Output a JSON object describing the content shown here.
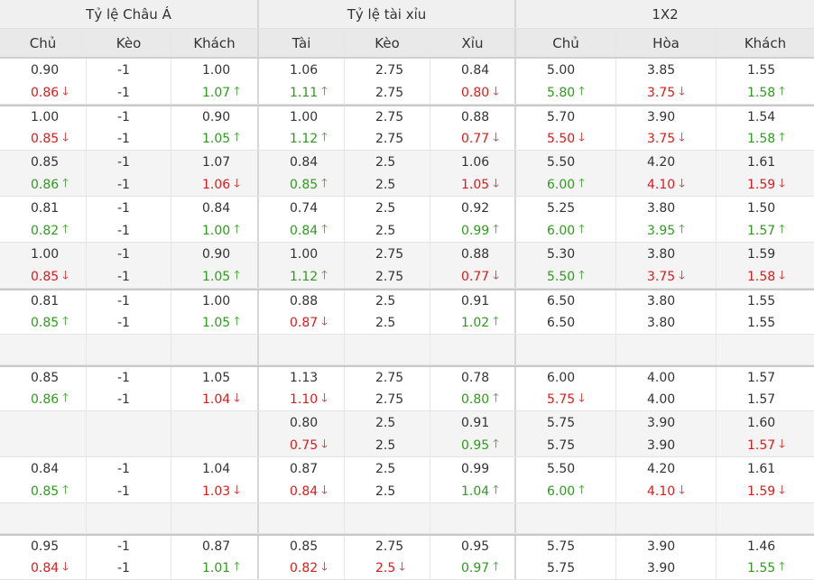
{
  "colors": {
    "up": "#2e9b1e",
    "down": "#dd1a1a",
    "neutral": "#333333"
  },
  "icons": {
    "up": "arrow-up-icon",
    "down": "arrow-down-icon"
  },
  "arrow_glyphs": {
    "up": "🡑",
    "down": "🡓"
  },
  "groups": [
    "Tỷ lệ Châu Á",
    "Tỷ lệ tài xỉu",
    "1X2"
  ],
  "columns": [
    "Chủ",
    "Kèo",
    "Khách",
    "Tài",
    "Kèo",
    "Xỉu",
    "Chủ",
    "Hòa",
    "Khách"
  ],
  "rows": [
    {
      "sep": false,
      "alt": false,
      "cells": [
        [
          {
            "v": "0.90"
          },
          {
            "v": "0.86",
            "d": "down"
          }
        ],
        [
          {
            "v": "-1"
          },
          {
            "v": "-1"
          }
        ],
        [
          {
            "v": "1.00"
          },
          {
            "v": "1.07",
            "d": "up"
          }
        ],
        [
          {
            "v": "1.06"
          },
          {
            "v": "1.11",
            "d": "up"
          }
        ],
        [
          {
            "v": "2.75"
          },
          {
            "v": "2.75"
          }
        ],
        [
          {
            "v": "0.84"
          },
          {
            "v": "0.80",
            "d": "down"
          }
        ],
        [
          {
            "v": "5.00"
          },
          {
            "v": "5.80",
            "d": "up"
          }
        ],
        [
          {
            "v": "3.85"
          },
          {
            "v": "3.75",
            "d": "down"
          }
        ],
        [
          {
            "v": "1.55"
          },
          {
            "v": "1.58",
            "d": "up"
          }
        ]
      ]
    },
    {
      "sep": true,
      "alt": false,
      "cells": [
        [
          {
            "v": "1.00"
          },
          {
            "v": "0.85",
            "d": "down"
          }
        ],
        [
          {
            "v": "-1"
          },
          {
            "v": "-1"
          }
        ],
        [
          {
            "v": "0.90"
          },
          {
            "v": "1.05",
            "d": "up"
          }
        ],
        [
          {
            "v": "1.00"
          },
          {
            "v": "1.12",
            "d": "up"
          }
        ],
        [
          {
            "v": "2.75"
          },
          {
            "v": "2.75"
          }
        ],
        [
          {
            "v": "0.88"
          },
          {
            "v": "0.77",
            "d": "down"
          }
        ],
        [
          {
            "v": "5.70"
          },
          {
            "v": "5.50",
            "d": "down"
          }
        ],
        [
          {
            "v": "3.90"
          },
          {
            "v": "3.75",
            "d": "down"
          }
        ],
        [
          {
            "v": "1.54"
          },
          {
            "v": "1.58",
            "d": "up"
          }
        ]
      ]
    },
    {
      "sep": false,
      "alt": true,
      "cells": [
        [
          {
            "v": "0.85"
          },
          {
            "v": "0.86",
            "d": "up"
          }
        ],
        [
          {
            "v": "-1"
          },
          {
            "v": "-1"
          }
        ],
        [
          {
            "v": "1.07"
          },
          {
            "v": "1.06",
            "d": "down"
          }
        ],
        [
          {
            "v": "0.84"
          },
          {
            "v": "0.85",
            "d": "up"
          }
        ],
        [
          {
            "v": "2.5"
          },
          {
            "v": "2.5"
          }
        ],
        [
          {
            "v": "1.06"
          },
          {
            "v": "1.05",
            "d": "down"
          }
        ],
        [
          {
            "v": "5.50"
          },
          {
            "v": "6.00",
            "d": "up"
          }
        ],
        [
          {
            "v": "4.20"
          },
          {
            "v": "4.10",
            "d": "down"
          }
        ],
        [
          {
            "v": "1.61"
          },
          {
            "v": "1.59",
            "d": "down"
          }
        ]
      ]
    },
    {
      "sep": false,
      "alt": false,
      "cells": [
        [
          {
            "v": "0.81"
          },
          {
            "v": "0.82",
            "d": "up"
          }
        ],
        [
          {
            "v": "-1"
          },
          {
            "v": "-1"
          }
        ],
        [
          {
            "v": "0.84"
          },
          {
            "v": "1.00",
            "d": "up"
          }
        ],
        [
          {
            "v": "0.74"
          },
          {
            "v": "0.84",
            "d": "up"
          }
        ],
        [
          {
            "v": "2.5"
          },
          {
            "v": "2.5"
          }
        ],
        [
          {
            "v": "0.92"
          },
          {
            "v": "0.99",
            "d": "up"
          }
        ],
        [
          {
            "v": "5.25"
          },
          {
            "v": "6.00",
            "d": "up"
          }
        ],
        [
          {
            "v": "3.80"
          },
          {
            "v": "3.95",
            "d": "up"
          }
        ],
        [
          {
            "v": "1.50"
          },
          {
            "v": "1.57",
            "d": "up"
          }
        ]
      ]
    },
    {
      "sep": false,
      "alt": true,
      "cells": [
        [
          {
            "v": "1.00"
          },
          {
            "v": "0.85",
            "d": "down"
          }
        ],
        [
          {
            "v": "-1"
          },
          {
            "v": "-1"
          }
        ],
        [
          {
            "v": "0.90"
          },
          {
            "v": "1.05",
            "d": "up"
          }
        ],
        [
          {
            "v": "1.00"
          },
          {
            "v": "1.12",
            "d": "up"
          }
        ],
        [
          {
            "v": "2.75"
          },
          {
            "v": "2.75"
          }
        ],
        [
          {
            "v": "0.88"
          },
          {
            "v": "0.77",
            "d": "down"
          }
        ],
        [
          {
            "v": "5.30"
          },
          {
            "v": "5.50",
            "d": "up"
          }
        ],
        [
          {
            "v": "3.80"
          },
          {
            "v": "3.75",
            "d": "down"
          }
        ],
        [
          {
            "v": "1.59"
          },
          {
            "v": "1.58",
            "d": "down"
          }
        ]
      ]
    },
    {
      "sep": true,
      "alt": false,
      "cells": [
        [
          {
            "v": "0.81"
          },
          {
            "v": "0.85",
            "d": "up"
          }
        ],
        [
          {
            "v": "-1"
          },
          {
            "v": "-1"
          }
        ],
        [
          {
            "v": "1.00"
          },
          {
            "v": "1.05",
            "d": "up"
          }
        ],
        [
          {
            "v": "0.88"
          },
          {
            "v": "0.87",
            "d": "down"
          }
        ],
        [
          {
            "v": "2.5"
          },
          {
            "v": "2.5"
          }
        ],
        [
          {
            "v": "0.91"
          },
          {
            "v": "1.02",
            "d": "up"
          }
        ],
        [
          {
            "v": "6.50"
          },
          {
            "v": "6.50"
          }
        ],
        [
          {
            "v": "3.80"
          },
          {
            "v": "3.80"
          }
        ],
        [
          {
            "v": "1.55"
          },
          {
            "v": "1.55"
          }
        ]
      ]
    },
    {
      "empty": true
    },
    {
      "sep": true,
      "alt": false,
      "cells": [
        [
          {
            "v": "0.85"
          },
          {
            "v": "0.86",
            "d": "up"
          }
        ],
        [
          {
            "v": "-1"
          },
          {
            "v": "-1"
          }
        ],
        [
          {
            "v": "1.05"
          },
          {
            "v": "1.04",
            "d": "down"
          }
        ],
        [
          {
            "v": "1.13"
          },
          {
            "v": "1.10",
            "d": "down"
          }
        ],
        [
          {
            "v": "2.75"
          },
          {
            "v": "2.75"
          }
        ],
        [
          {
            "v": "0.78"
          },
          {
            "v": "0.80",
            "d": "up"
          }
        ],
        [
          {
            "v": "6.00"
          },
          {
            "v": "5.75",
            "d": "down"
          }
        ],
        [
          {
            "v": "4.00"
          },
          {
            "v": "4.00"
          }
        ],
        [
          {
            "v": "1.57"
          },
          {
            "v": "1.57"
          }
        ]
      ]
    },
    {
      "sep": false,
      "alt": true,
      "cells": [
        [],
        [],
        [],
        [
          {
            "v": "0.80"
          },
          {
            "v": "0.75",
            "d": "down"
          }
        ],
        [
          {
            "v": "2.5"
          },
          {
            "v": "2.5"
          }
        ],
        [
          {
            "v": "0.91"
          },
          {
            "v": "0.95",
            "d": "up"
          }
        ],
        [
          {
            "v": "5.75"
          },
          {
            "v": "5.75"
          }
        ],
        [
          {
            "v": "3.90"
          },
          {
            "v": "3.90"
          }
        ],
        [
          {
            "v": "1.60"
          },
          {
            "v": "1.57",
            "d": "down"
          }
        ]
      ]
    },
    {
      "sep": false,
      "alt": false,
      "cells": [
        [
          {
            "v": "0.84"
          },
          {
            "v": "0.85",
            "d": "up"
          }
        ],
        [
          {
            "v": "-1"
          },
          {
            "v": "-1"
          }
        ],
        [
          {
            "v": "1.04"
          },
          {
            "v": "1.03",
            "d": "down"
          }
        ],
        [
          {
            "v": "0.87"
          },
          {
            "v": "0.84",
            "d": "down"
          }
        ],
        [
          {
            "v": "2.5"
          },
          {
            "v": "2.5"
          }
        ],
        [
          {
            "v": "0.99"
          },
          {
            "v": "1.04",
            "d": "up"
          }
        ],
        [
          {
            "v": "5.50"
          },
          {
            "v": "6.00",
            "d": "up"
          }
        ],
        [
          {
            "v": "4.20"
          },
          {
            "v": "4.10",
            "d": "down"
          }
        ],
        [
          {
            "v": "1.61"
          },
          {
            "v": "1.59",
            "d": "down"
          }
        ]
      ]
    },
    {
      "empty": true
    },
    {
      "sep": true,
      "alt": false,
      "cells": [
        [
          {
            "v": "0.95"
          },
          {
            "v": "0.84",
            "d": "down"
          }
        ],
        [
          {
            "v": "-1"
          },
          {
            "v": "-1"
          }
        ],
        [
          {
            "v": "0.87"
          },
          {
            "v": "1.01",
            "d": "up"
          }
        ],
        [
          {
            "v": "0.85"
          },
          {
            "v": "0.82",
            "d": "down"
          }
        ],
        [
          {
            "v": "2.75"
          },
          {
            "v": "2.5",
            "d": "down"
          }
        ],
        [
          {
            "v": "0.95"
          },
          {
            "v": "0.97",
            "d": "up"
          }
        ],
        [
          {
            "v": "5.75"
          },
          {
            "v": "5.75"
          }
        ],
        [
          {
            "v": "3.90"
          },
          {
            "v": "3.90"
          }
        ],
        [
          {
            "v": "1.46"
          },
          {
            "v": "1.55",
            "d": "up"
          }
        ]
      ]
    }
  ]
}
